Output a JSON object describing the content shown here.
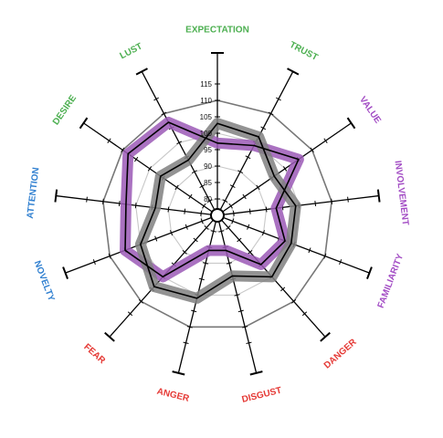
{
  "chart_data": {
    "type": "radar",
    "title": "",
    "r_ticks": [
      80,
      85,
      90,
      95,
      100,
      105,
      110,
      115
    ],
    "r_range": [
      75,
      120
    ],
    "grid_rings": [
      80,
      90,
      100,
      110
    ],
    "axes": [
      {
        "label": "EXPECTATION",
        "color": "#4caf50"
      },
      {
        "label": "TRUST",
        "color": "#4caf50"
      },
      {
        "label": "VALUE",
        "color": "#a24bc4"
      },
      {
        "label": "INVOLVEMENT",
        "color": "#a24bc4"
      },
      {
        "label": "FAMILIARITY",
        "color": "#a24bc4"
      },
      {
        "label": "DANGER",
        "color": "#e53935"
      },
      {
        "label": "DISGUST",
        "color": "#e53935"
      },
      {
        "label": "ANGER",
        "color": "#e53935"
      },
      {
        "label": "FEAR",
        "color": "#e53935"
      },
      {
        "label": "NOVELTY",
        "color": "#2f7fd0"
      },
      {
        "label": "ATTENTION",
        "color": "#2f7fd0"
      },
      {
        "label": "DESIRE",
        "color": "#4caf50"
      },
      {
        "label": "LUST",
        "color": "#4caf50"
      }
    ],
    "series": [
      {
        "color": "#9b59b6",
        "values": [
          97,
          99,
          105,
          93,
          97,
          95,
          86,
          86,
          100,
          105,
          103,
          108,
          107
        ]
      },
      {
        "color": "#808080",
        "values": [
          103,
          102,
          96,
          99,
          99,
          100,
          94,
          101,
          104,
          100,
          94,
          96,
          94
        ]
      }
    ]
  }
}
